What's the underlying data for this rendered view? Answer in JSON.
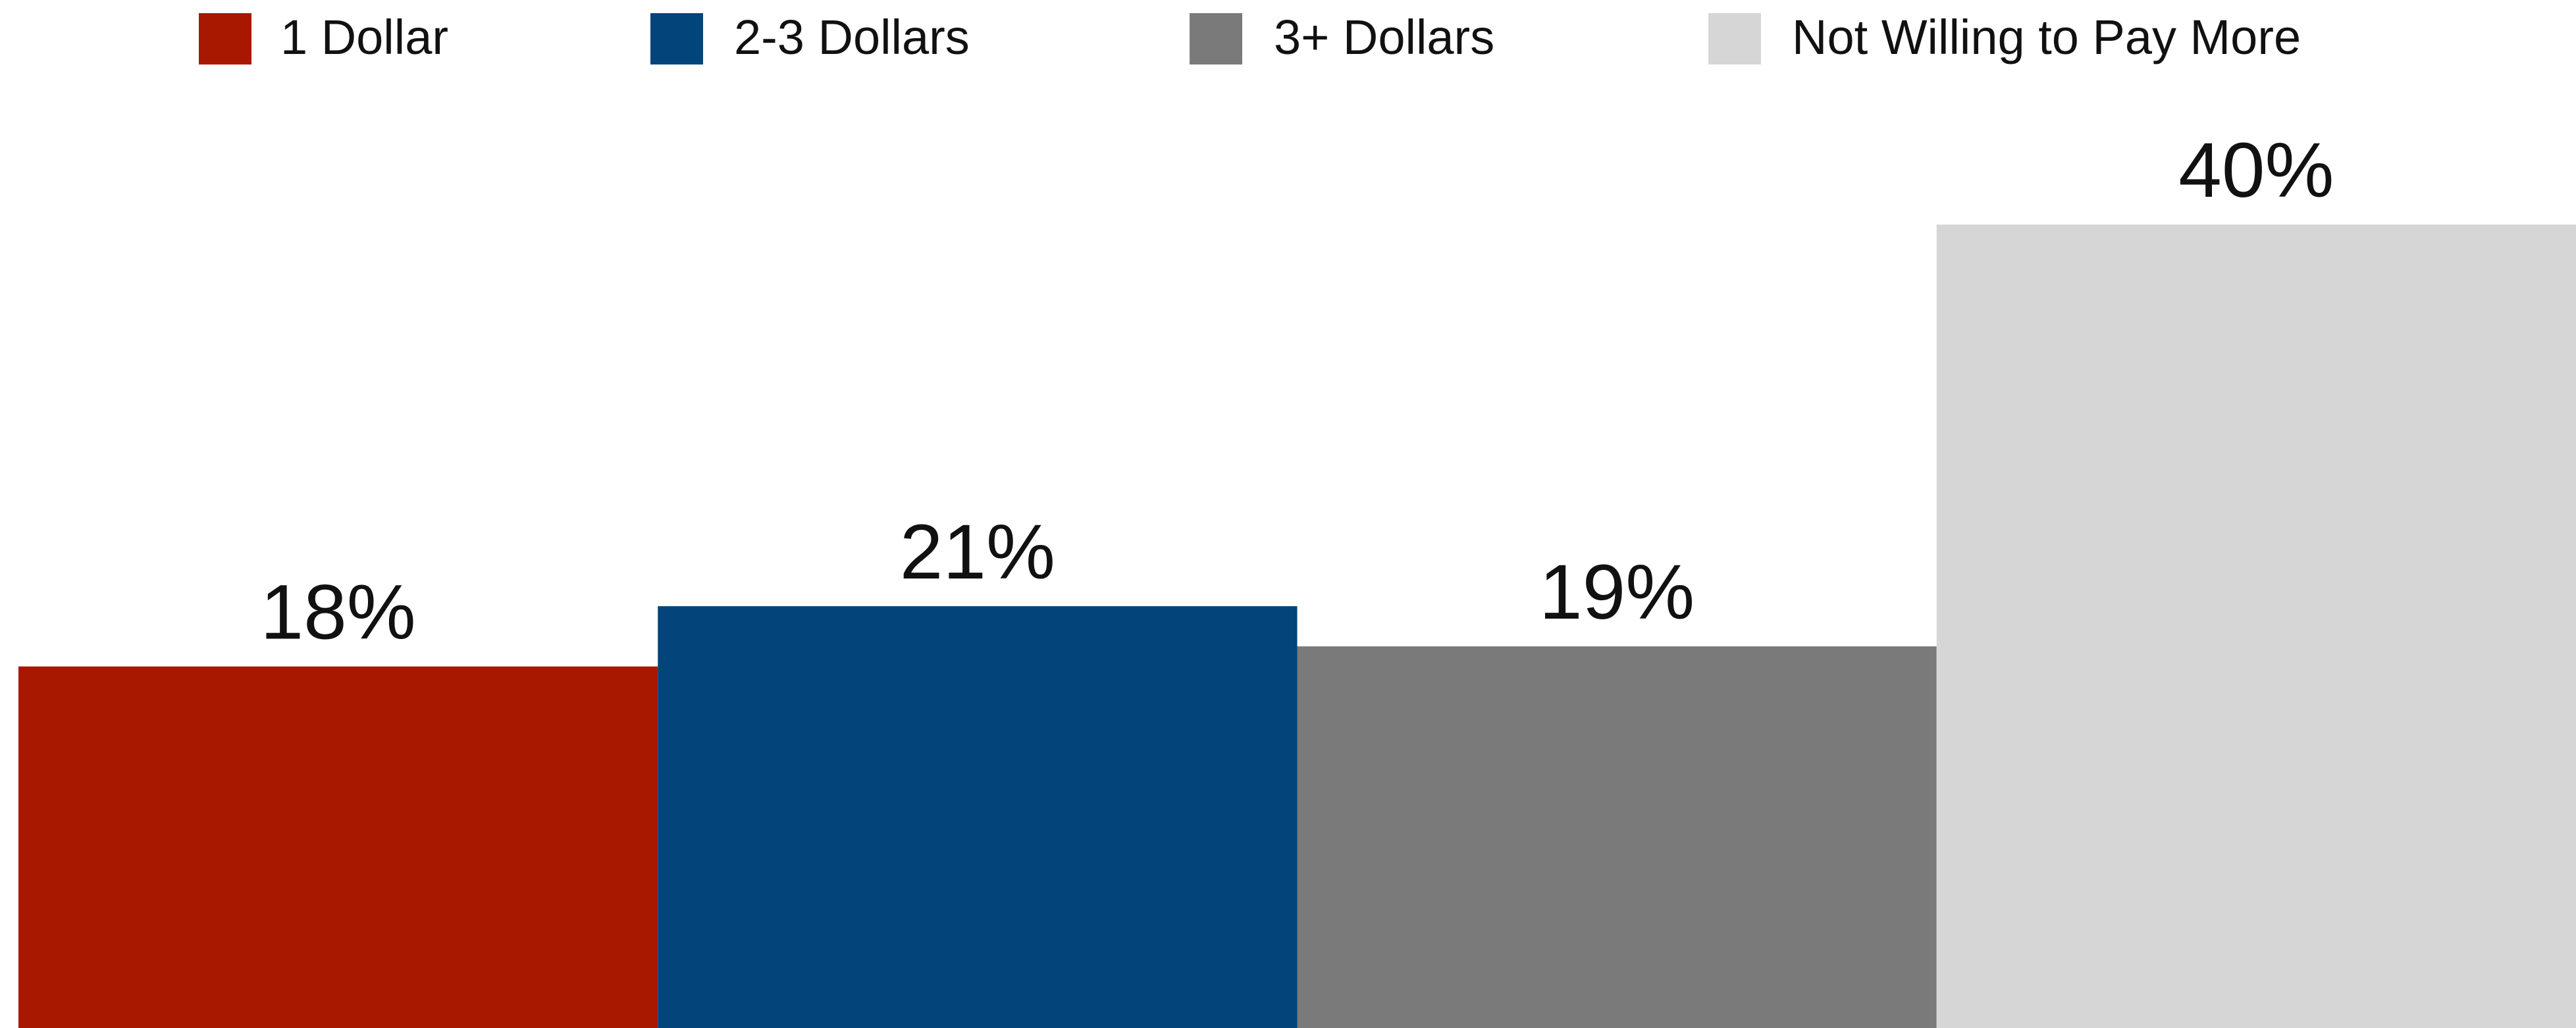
{
  "chart_data": {
    "type": "bar",
    "categories": [
      "1 Dollar",
      "2-3 Dollars",
      "3+ Dollars",
      "Not Willing to Pay More"
    ],
    "values": [
      18,
      21,
      19,
      40
    ],
    "data_labels": [
      "18%",
      "21%",
      "19%",
      "40%"
    ],
    "unit": "%",
    "ylim": [
      0,
      50
    ],
    "grid": false,
    "legend_position": "top",
    "colors": [
      "#a81800",
      "#03457a",
      "#7a7a7a",
      "#d6d6d6"
    ],
    "legend": [
      {
        "label": "1 Dollar",
        "color": "#a81800"
      },
      {
        "label": "2-3 Dollars",
        "color": "#03457a"
      },
      {
        "label": "3+ Dollars",
        "color": "#7a7a7a"
      },
      {
        "label": "Not Willing to Pay More",
        "color": "#d6d6d6"
      }
    ]
  }
}
